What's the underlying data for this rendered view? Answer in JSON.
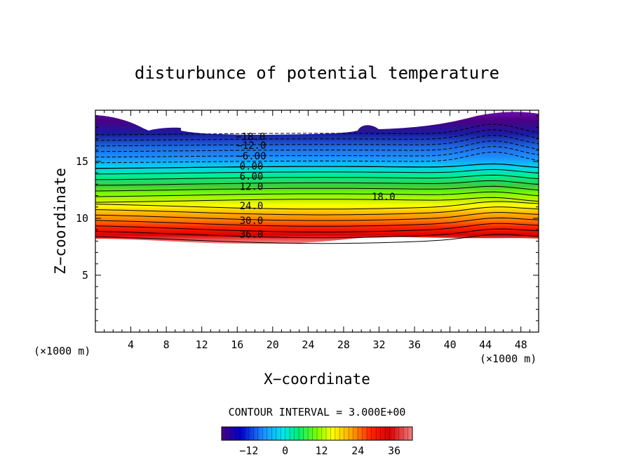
{
  "chart_data": {
    "type": "contour",
    "title": "disturbunce of potential temperature",
    "xlabel": "X−coordinate",
    "ylabel": "Z−coordinate",
    "x_unit_left": "(×1000 m)",
    "x_unit_right": "(×1000 m)",
    "xlim": [
      0,
      50
    ],
    "ylim": [
      0,
      19.5
    ],
    "x_ticks": [
      4,
      8,
      12,
      16,
      20,
      24,
      28,
      32,
      36,
      40,
      44,
      48
    ],
    "y_ticks": [
      5,
      10,
      15
    ],
    "contour_interval_text": "CONTOUR INTERVAL = 3.000E+00",
    "contour_interval": 3.0,
    "contour_range": [
      -18,
      39
    ],
    "negative_contours": "dashed",
    "contour_labels": [
      {
        "text": "−18.0",
        "x": 17.5,
        "z": 17.2
      },
      {
        "text": "−12.0",
        "x": 17.6,
        "z": 16.4
      },
      {
        "text": "−6.00",
        "x": 17.6,
        "z": 15.5
      },
      {
        "text": "0.00",
        "x": 17.6,
        "z": 14.6
      },
      {
        "text": "6.00",
        "x": 17.6,
        "z": 13.7
      },
      {
        "text": "12.0",
        "x": 17.6,
        "z": 12.8
      },
      {
        "text": "18.0",
        "x": 32.5,
        "z": 11.9
      },
      {
        "text": "24.0",
        "x": 17.6,
        "z": 11.1
      },
      {
        "text": "30.0",
        "x": 17.6,
        "z": 9.8
      },
      {
        "text": "36.0",
        "x": 17.6,
        "z": 8.6
      }
    ],
    "colorbar": {
      "ticks": [
        -12,
        0,
        12,
        24,
        36
      ],
      "tick_labels": [
        "−12",
        "0",
        "12",
        "24",
        "36"
      ],
      "min": -21,
      "max": 42,
      "colors": [
        "#4b0082",
        "#0000cd",
        "#1e90ff",
        "#00e5ee",
        "#00ee76",
        "#7cfc00",
        "#ffff00",
        "#ffa500",
        "#ff2400",
        "#d90000",
        "#f08080"
      ]
    }
  }
}
